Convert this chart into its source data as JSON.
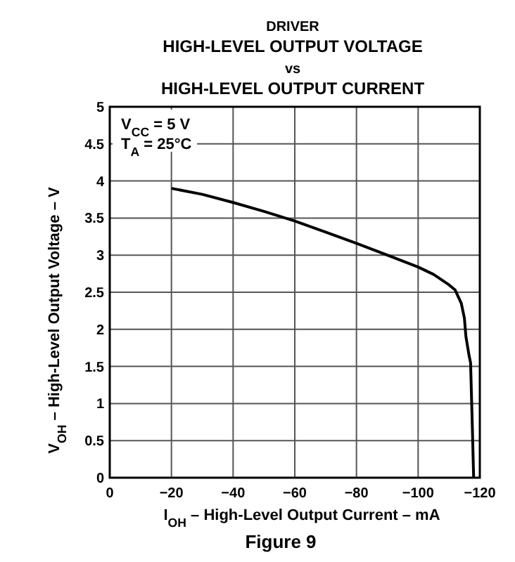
{
  "chart_data": {
    "type": "line",
    "title": "DRIVER\nHIGH-LEVEL OUTPUT VOLTAGE\nvs\nHIGH-LEVEL OUTPUT CURRENT",
    "xlabel": "I$_{OH}$ – High-Level Output Current – mA",
    "ylabel": "V$_{OH}$ – High-Level Output Voltage – V",
    "annotations": [
      "V$_{CC}$ = 5 V",
      "T$_{A}$ = 25°C",
      "Figure 9"
    ],
    "x": [
      -20,
      -30,
      -40,
      -50,
      -60,
      -70,
      -80,
      -90,
      -100,
      -105,
      -110,
      -112,
      -114,
      -115,
      -115.5,
      -116.5,
      -117,
      -117.5,
      -118
    ],
    "series": [
      {
        "color": "#000000",
        "values": [
          3.9,
          3.82,
          3.71,
          3.59,
          3.46,
          3.31,
          3.16,
          3.0,
          2.84,
          2.74,
          2.6,
          2.53,
          2.35,
          2.15,
          1.9,
          1.65,
          1.55,
          0.8,
          0
        ]
      }
    ],
    "xlim": [
      0,
      -120
    ],
    "xticks": [
      {
        "value": 0,
        "label": "0"
      },
      {
        "value": -20,
        "label": "−20"
      },
      {
        "value": -40,
        "label": "−40"
      },
      {
        "value": -60,
        "label": "−60"
      },
      {
        "value": -80,
        "label": "−80"
      },
      {
        "value": -100,
        "label": "−100"
      },
      {
        "value": -120,
        "label": "−120"
      }
    ],
    "ylim": [
      0,
      5
    ],
    "yticks": [
      0,
      0.5,
      1,
      1.5,
      2,
      2.5,
      3,
      3.5,
      4,
      4.5,
      5
    ],
    "grid": true,
    "line_style": "solid",
    "marker": "none"
  }
}
